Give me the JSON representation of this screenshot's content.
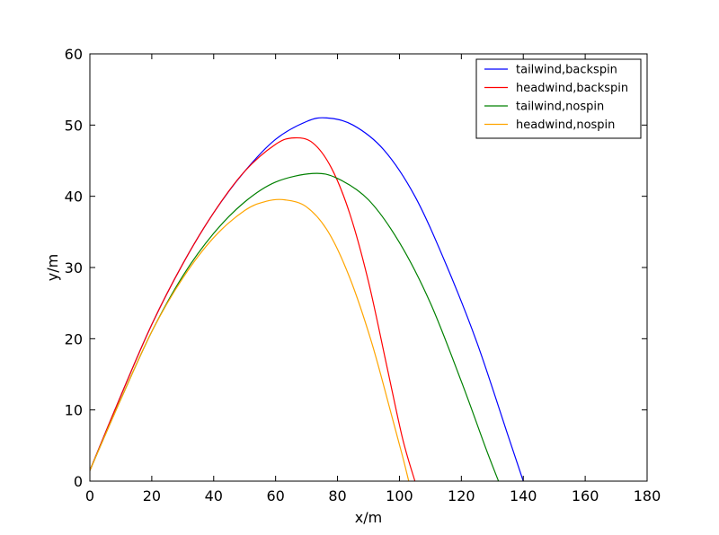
{
  "chart_data": {
    "type": "line",
    "title": "",
    "xlabel": "x/m",
    "ylabel": "y/m",
    "xlim": [
      0,
      180
    ],
    "ylim": [
      0,
      60
    ],
    "xticks": [
      "0",
      "20",
      "40",
      "60",
      "80",
      "100",
      "120",
      "140",
      "160",
      "180"
    ],
    "yticks": [
      "0",
      "10",
      "20",
      "30",
      "40",
      "50",
      "60"
    ],
    "grid": false,
    "legend_position": "top-right",
    "series": [
      {
        "name": "tailwind,backspin",
        "color": "#0000ff",
        "x": [
          0,
          10,
          20,
          30,
          40,
          50,
          60,
          70,
          76.5,
          85,
          95,
          105,
          115,
          125,
          135,
          140
        ],
        "y": [
          1.5,
          12,
          22,
          30.5,
          37.7,
          43.5,
          48,
          50.5,
          51,
          50,
          46.5,
          40,
          30.5,
          19.5,
          6.5,
          0
        ]
      },
      {
        "name": "headwind,backspin",
        "color": "#ff0000",
        "x": [
          0,
          10,
          20,
          30,
          40,
          50,
          60,
          66,
          72,
          78,
          84,
          90,
          96,
          101,
          105
        ],
        "y": [
          1.5,
          12,
          22,
          30.5,
          37.7,
          43.5,
          47.3,
          48.2,
          47.5,
          44,
          37.5,
          28,
          16,
          6,
          0
        ]
      },
      {
        "name": "tailwind,nospin",
        "color": "#008000",
        "x": [
          0,
          10,
          20,
          30,
          40,
          50,
          60,
          72,
          80,
          90,
          100,
          110,
          120,
          128,
          132
        ],
        "y": [
          1.5,
          11.5,
          21,
          28.8,
          34.8,
          39.2,
          42,
          43.2,
          42.5,
          39.5,
          33.5,
          25,
          14,
          4.5,
          0
        ]
      },
      {
        "name": "headwind,nospin",
        "color": "#ffa500",
        "x": [
          0,
          10,
          20,
          30,
          40,
          50,
          57,
          63,
          70,
          77,
          84,
          91,
          97,
          101,
          103
        ],
        "y": [
          1.5,
          11.5,
          21,
          28.5,
          34.2,
          38,
          39.3,
          39.5,
          38.5,
          35,
          28.5,
          19.5,
          10,
          3.5,
          0
        ]
      }
    ]
  }
}
